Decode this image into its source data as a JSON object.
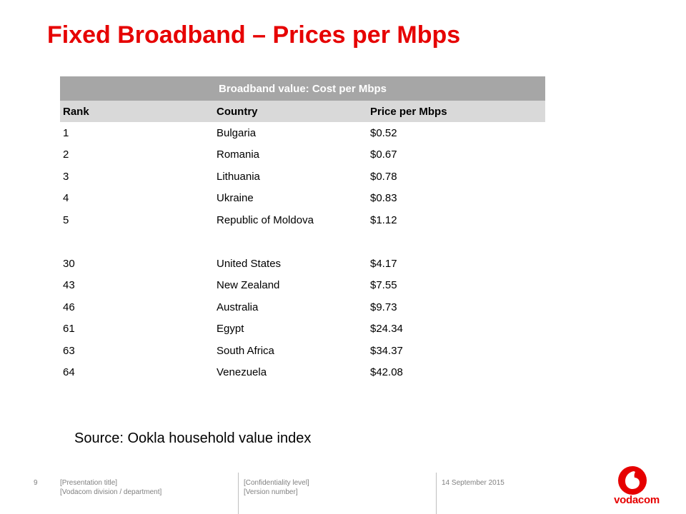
{
  "slide": {
    "title": "Fixed Broadband – Prices per Mbps",
    "accent_color": "#e60000"
  },
  "table": {
    "caption": "Broadband value: Cost per Mbps",
    "headers": [
      "Rank",
      "Country",
      "Price per Mbps"
    ],
    "rows": [
      [
        "1",
        "Bulgaria",
        "$0.52"
      ],
      [
        "2",
        "Romania",
        "$0.67"
      ],
      [
        "3",
        "Lithuania",
        "$0.78"
      ],
      [
        "4",
        "Ukraine",
        "$0.83"
      ],
      [
        "5",
        "Republic of Moldova",
        "$1.12"
      ],
      [
        "",
        "",
        ""
      ],
      [
        "30",
        "United States",
        "$4.17"
      ],
      [
        "43",
        "New Zealand",
        "$7.55"
      ],
      [
        "46",
        "Australia",
        "$9.73"
      ],
      [
        "61",
        "Egypt",
        "$24.34"
      ],
      [
        "63",
        "South Africa",
        "$34.37"
      ],
      [
        "64",
        "Venezuela",
        "$42.08"
      ]
    ]
  },
  "source": "Source: Ookla household value index",
  "footer": {
    "page_number": "9",
    "presentation_title": "[Presentation title]",
    "division": "[Vodacom division / department]",
    "confidentiality": "[Confidentiality level]",
    "version": "[Version number]",
    "date": "14 September 2015"
  },
  "logo": {
    "icon": "vodafone-speechmark-icon",
    "wordmark": "vodacom"
  }
}
